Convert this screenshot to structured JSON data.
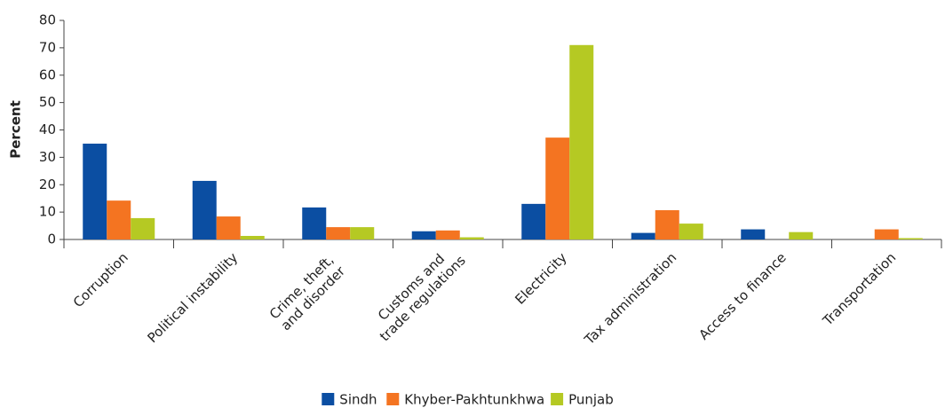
{
  "chart_data": {
    "type": "bar",
    "y_label": "Percent",
    "categories": [
      [
        "Corruption"
      ],
      [
        "Political instability"
      ],
      [
        "Crime, theft,",
        "and disorder"
      ],
      [
        "Customs and",
        "trade regulations"
      ],
      [
        "Electricity"
      ],
      [
        "Tax administration"
      ],
      [
        "Access to finance"
      ],
      [
        "Transportation"
      ]
    ],
    "series": [
      {
        "name": "Sindh",
        "color": "#0b4ea2",
        "values": [
          35,
          21.4,
          11.7,
          3,
          13,
          2.4,
          3.7,
          0
        ]
      },
      {
        "name": "Khyber-Pakhtunkhwa",
        "color": "#f47421",
        "values": [
          14.2,
          8.4,
          4.5,
          3.3,
          37.2,
          10.7,
          0,
          3.7
        ]
      },
      {
        "name": "Punjab",
        "color": "#b5c923",
        "values": [
          7.8,
          1.3,
          4.5,
          0.8,
          71,
          5.8,
          2.7,
          0.5
        ]
      }
    ],
    "ylim": [
      0,
      80
    ],
    "yticks": [
      0,
      10,
      20,
      30,
      40,
      50,
      60,
      70,
      80
    ],
    "grid": false
  }
}
